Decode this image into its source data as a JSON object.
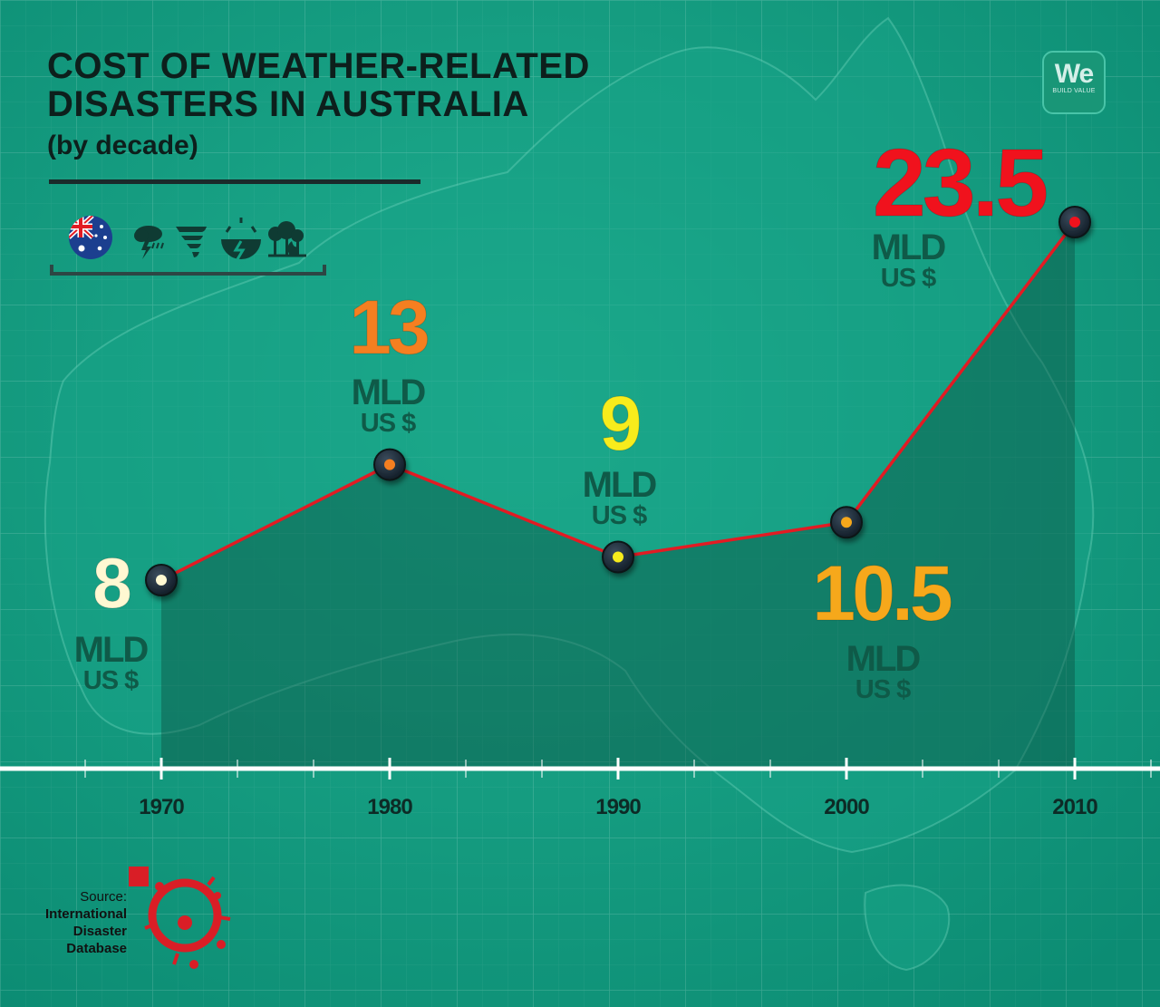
{
  "header": {
    "title_line1": "COST OF WEATHER-RELATED",
    "title_line2": "DISASTERS IN AUSTRALIA",
    "subtitle": "(by decade)"
  },
  "icons": [
    "australia-flag-icon",
    "storm-icon",
    "tornado-icon",
    "earthquake-icon",
    "bushfire-icon"
  ],
  "logo": {
    "text": "We",
    "tagline": "BUILD VALUE"
  },
  "source": {
    "label": "Source:",
    "line1": "International",
    "line2": "Disaster",
    "line3": "Database"
  },
  "colors": {
    "background": "#12a184",
    "line": "#e21b23",
    "value_1970": "#fff8d2",
    "value_1980": "#f57f20",
    "value_1990": "#f7ec1c",
    "value_2000": "#f6a81b",
    "value_2010": "#f0121d",
    "unit_text": "#0f5a48"
  },
  "chart_data": {
    "type": "line",
    "title": "COST OF WEATHER-RELATED DISASTERS IN AUSTRALIA",
    "subtitle": "(by decade)",
    "x": [
      "1970",
      "1980",
      "1990",
      "2000",
      "2010"
    ],
    "series": [
      {
        "values": [
          8,
          13,
          9,
          10.5,
          23.5
        ]
      }
    ],
    "data_labels": [
      "8",
      "13",
      "9",
      "10.5",
      "23.5"
    ],
    "unit_line1": "MLD",
    "unit_line2": "US $",
    "grid": true,
    "legend": "none"
  }
}
